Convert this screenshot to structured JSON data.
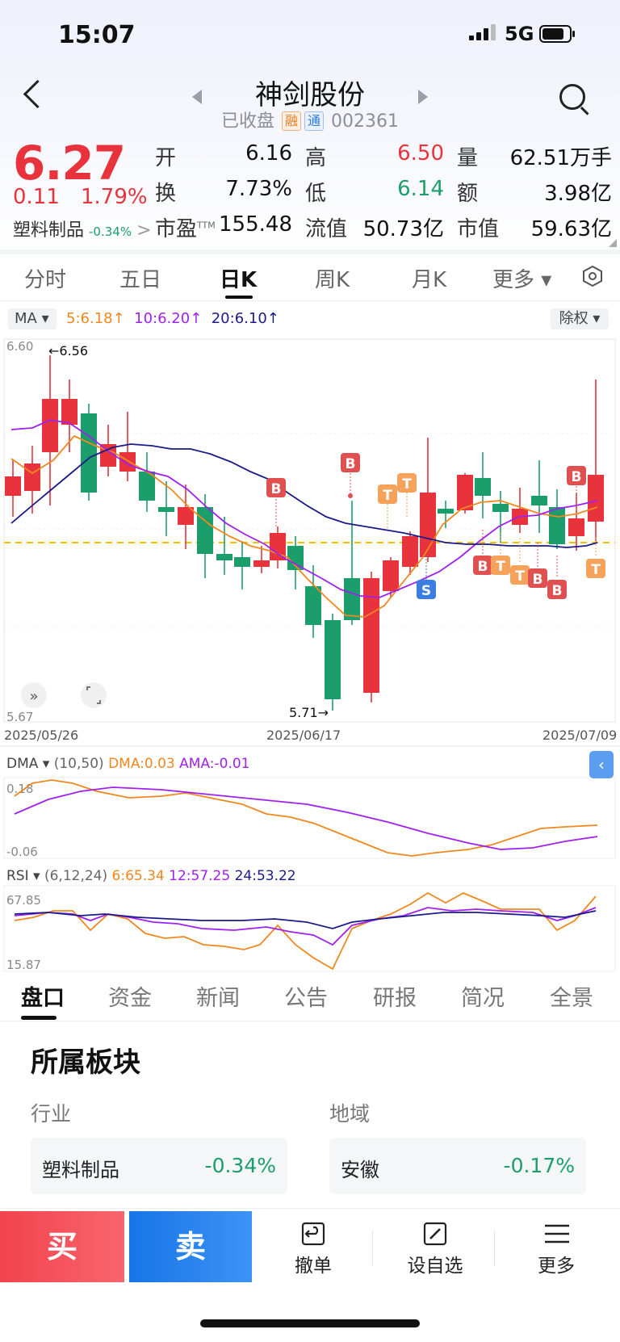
{
  "status": {
    "time": "15:07",
    "network": "5G"
  },
  "header": {
    "title": "神剑股份",
    "status": "已收盘",
    "tag_rong": "融",
    "tag_tong": "通",
    "code": "002361"
  },
  "quote": {
    "price": "6.27",
    "change": "0.11",
    "change_pct": "1.79%",
    "sector_name": "塑料制品",
    "sector_pct": "-0.34%",
    "open_l": "开",
    "open": "6.16",
    "high_l": "高",
    "high": "6.50",
    "vol_l": "量",
    "vol": "62.51万手",
    "turnover_l": "换",
    "turnover": "7.73%",
    "low_l": "低",
    "low": "6.14",
    "amount_l": "额",
    "amount": "3.98亿",
    "pe_l": "市盈",
    "pe_sup": "TTM",
    "pe": "155.48",
    "float_l": "流值",
    "float_cap": "50.73亿",
    "mcap_l": "市值",
    "mcap": "59.63亿"
  },
  "chart_tabs": [
    "分时",
    "五日",
    "日K",
    "周K",
    "月K",
    "更多 ▾"
  ],
  "ma_bar": {
    "selector": "MA ▾",
    "ma5": "5:6.18↑",
    "ma10": "10:6.20↑",
    "ma20": "20:6.10↑",
    "adjust": "除权 ▾"
  },
  "kline": {
    "y_top": "6.60",
    "y_bottom": "5.67",
    "max_label": "←6.56",
    "min_label": "5.71→",
    "dates": [
      "2025/05/26",
      "2025/06/17",
      "2025/07/09"
    ]
  },
  "dma": {
    "selector": "DMA ▾",
    "params": "(10,50)",
    "dma": "DMA:0.03",
    "ama": "AMA:-0.01",
    "y_top": "0.18",
    "y_bottom": "-0.06"
  },
  "rsi": {
    "selector": "RSI ▾",
    "params": "(6,12,24)",
    "r6": "6:65.34",
    "r12": "12:57.25",
    "r24": "24:53.22",
    "y_top": "67.85",
    "y_bottom": "15.87"
  },
  "info_tabs": [
    "盘口",
    "资金",
    "新闻",
    "公告",
    "研报",
    "简况",
    "全景"
  ],
  "sector_block": {
    "title": "所属板块",
    "industry_label": "行业",
    "industry_name": "塑料制品",
    "industry_pct": "-0.34%",
    "region_label": "地域",
    "region_name": "安徽",
    "region_pct": "-0.17%"
  },
  "bottom_bar": {
    "buy": "买",
    "sell": "卖",
    "cancel": "撤单",
    "watch": "设自选",
    "more": "更多"
  },
  "colors": {
    "up": "#e8333c",
    "down": "#1b9e6b",
    "ma5": "#f0871f",
    "ma10": "#a020f0",
    "ma20": "#1a1a8c",
    "accent": "#1775e8"
  }
}
